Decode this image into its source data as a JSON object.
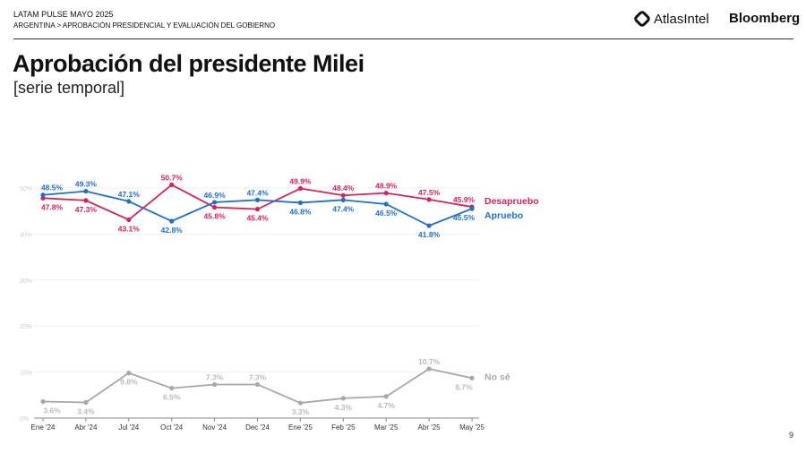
{
  "header": {
    "line1": "LATAM PULSE MAYO 2025",
    "line2": "ARGENTINA > APROBACIÓN PRESIDENCIAL Y EVALUACIÓN DEL GOBIERNO",
    "logo_atlas": "AtlasIntel",
    "logo_bloomberg": "Bloomberg"
  },
  "title": "Aprobación del presidente Milei",
  "subtitle": "[serie temporal]",
  "page_number": "9",
  "chart_data": {
    "type": "line",
    "categories": [
      "Ene '24",
      "Abr '24",
      "Jul '24",
      "Oct '24",
      "Nov '24",
      "Dec '24",
      "Ene '25",
      "Feb '25",
      "Mar '25",
      "Abr '25",
      "May '25"
    ],
    "yticks": [
      "0%",
      "10%",
      "20%",
      "30%",
      "40%",
      "50%"
    ],
    "ylim": [
      0,
      60
    ],
    "series": [
      {
        "name": "Desapruebo",
        "color": "#d6225b",
        "values": [
          47.8,
          47.3,
          43.1,
          50.7,
          45.8,
          45.4,
          49.9,
          48.4,
          48.9,
          47.5,
          45.9
        ]
      },
      {
        "name": "Apruebo",
        "color": "#1f6fd1",
        "values": [
          48.5,
          49.3,
          47.1,
          42.8,
          46.9,
          47.4,
          46.8,
          47.4,
          46.5,
          41.8,
          45.5
        ]
      },
      {
        "name": "No sé",
        "color": "#a8a8a8",
        "values": [
          3.6,
          3.4,
          9.8,
          6.5,
          7.3,
          7.3,
          3.3,
          4.3,
          4.7,
          10.7,
          8.7
        ]
      }
    ]
  }
}
